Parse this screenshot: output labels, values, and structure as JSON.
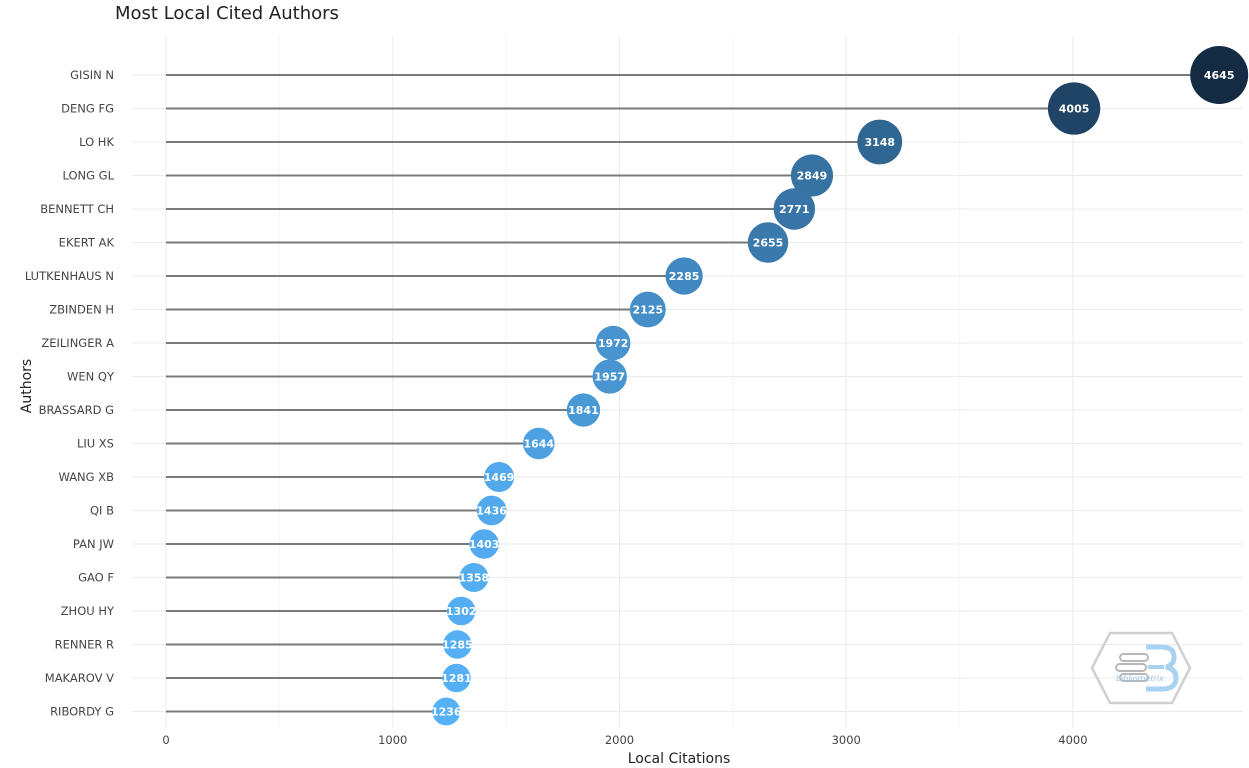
{
  "chart_data": {
    "type": "lollipop",
    "title": "Most Local Cited Authors",
    "xlabel": "Local Citations",
    "ylabel": "Authors",
    "xlim": [
      -150,
      4750
    ],
    "xticks": [
      0,
      1000,
      2000,
      3000,
      4000
    ],
    "grid": true,
    "categories": [
      "GISIN N",
      "DENG FG",
      "LO HK",
      "LONG GL",
      "BENNETT CH",
      "EKERT AK",
      "LUTKENHAUS N",
      "ZBINDEN H",
      "ZEILINGER A",
      "WEN QY",
      "BRASSARD G",
      "LIU XS",
      "WANG XB",
      "QI B",
      "PAN JW",
      "GAO F",
      "ZHOU HY",
      "RENNER R",
      "MAKAROV V",
      "RIBORDY G"
    ],
    "values": [
      4645,
      4005,
      3148,
      2849,
      2771,
      2655,
      2285,
      2125,
      1972,
      1957,
      1841,
      1644,
      1469,
      1436,
      1403,
      1358,
      1302,
      1285,
      1281,
      1236
    ],
    "color_low": "#56b1f7",
    "color_high": "#132b43"
  },
  "watermark": {
    "logo_icon": "bibliometrix-hexagon-icon",
    "text": "bibliometrix"
  }
}
